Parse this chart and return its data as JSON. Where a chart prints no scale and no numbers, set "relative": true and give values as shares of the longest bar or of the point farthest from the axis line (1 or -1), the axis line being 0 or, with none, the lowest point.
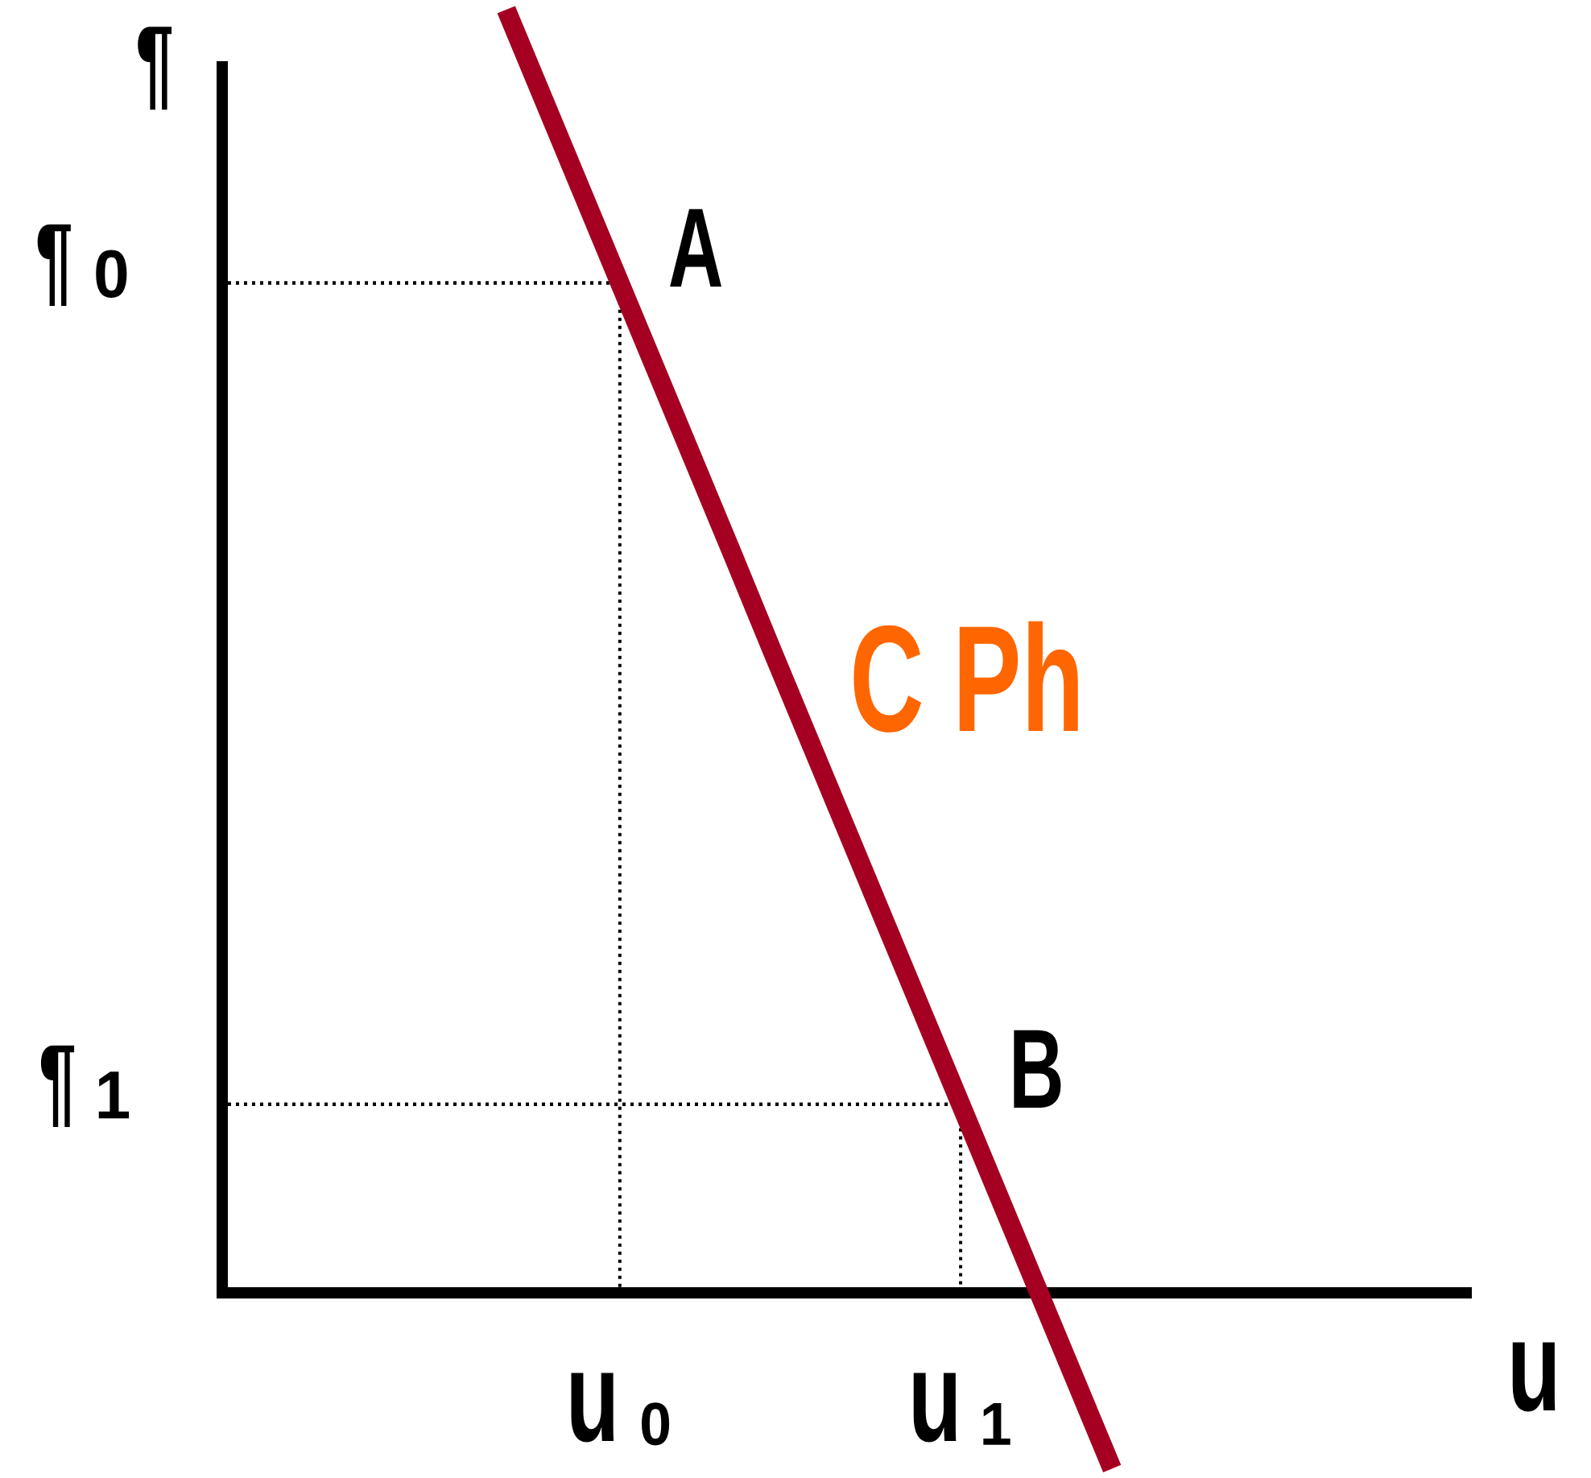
{
  "chart_data": {
    "type": "line",
    "relative": true,
    "xlabel": "u",
    "ylabel": "¶",
    "categories": [
      null,
      null,
      null,
      null,
      null,
      null,
      null,
      null,
      null,
      null,
      "u₀",
      null,
      null,
      null,
      null,
      null,
      null,
      null,
      null,
      "u₁",
      null,
      null,
      null,
      null,
      null,
      null,
      null,
      null,
      null,
      null,
      null,
      null,
      null
    ],
    "series": [
      {
        "name": "C Ph",
        "color": "#a50021",
        "values": [
          null,
          null,
          null,
          null,
          null,
          null,
          null,
          1,
          0.929,
          0.858,
          0.787,
          0.716,
          0.645,
          0.574,
          0.502,
          0.431,
          0.36,
          0.289,
          0.218,
          0.147,
          0.076,
          0.005,
          -0.066,
          -0.137,
          null,
          null,
          null,
          null,
          null,
          null,
          null,
          null,
          null
        ]
      }
    ],
    "ref_lines": [
      {
        "axis": "y",
        "value": 0.787,
        "label": "¶₀",
        "color": "#000000",
        "line_style": "dotted"
      },
      {
        "axis": "y",
        "value": 0.147,
        "label": "¶₁",
        "color": "#000000",
        "line_style": "dotted"
      }
    ],
    "annotations": [
      {
        "text": "A",
        "x": "u₀",
        "y": 0.787
      },
      {
        "text": "B",
        "x": "u₁",
        "y": 0.147
      }
    ]
  }
}
